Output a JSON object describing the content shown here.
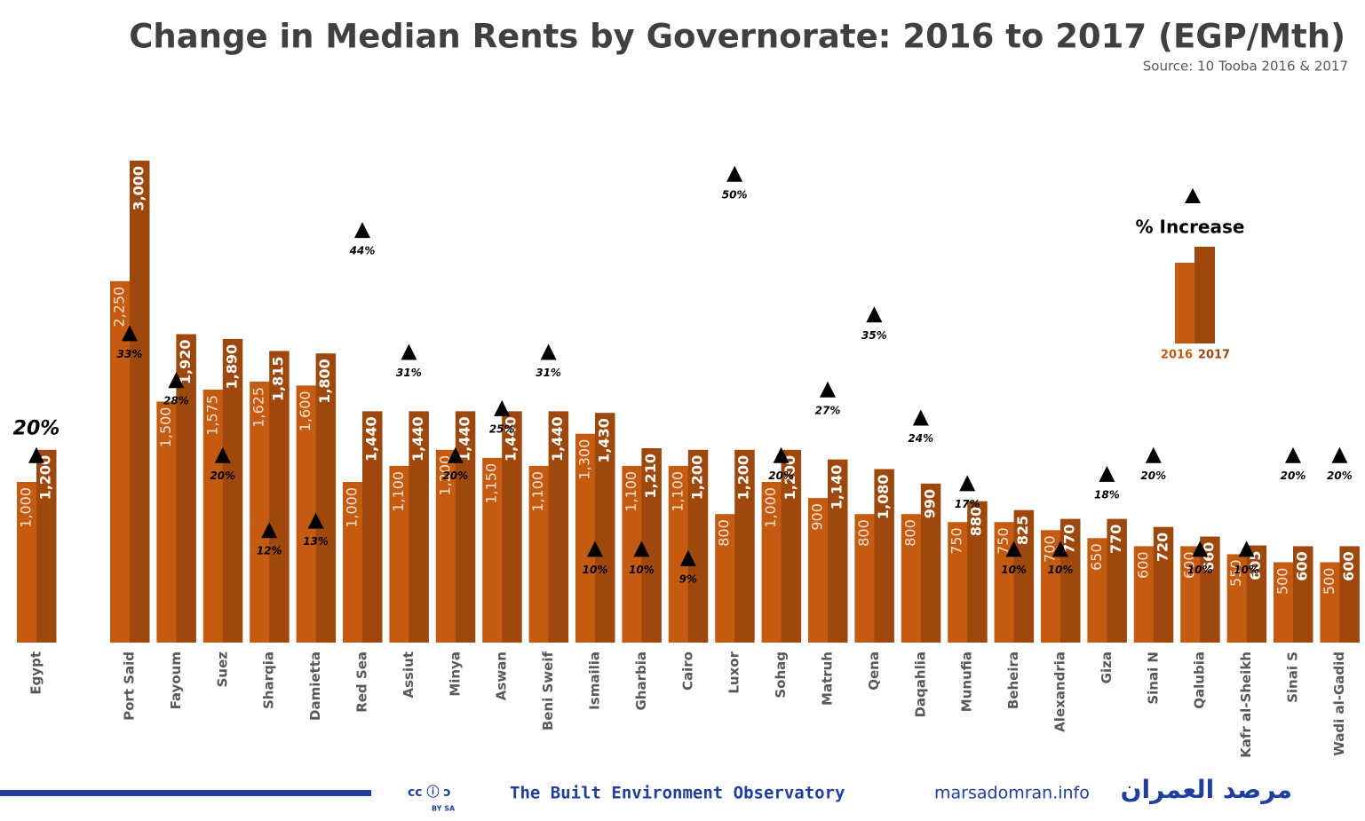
{
  "chart_data": {
    "type": "bar",
    "title": "Change in Median Rents by Governorate: 2016 to 2017 (EGP/Mth)",
    "subtitle": "Source: 10 Tooba 2016 & 2017",
    "categories": [
      "Egypt",
      "Port Said",
      "Fayoum",
      "Suez",
      "Sharqia",
      "Damietta",
      "Red Sea",
      "Assiut",
      "Minya",
      "Aswan",
      "Beni Sweif",
      "Ismailia",
      "Gharbia",
      "Cairo",
      "Luxor",
      "Sohag",
      "Matruh",
      "Qena",
      "Daqahlia",
      "Munufia",
      "Beheira",
      "Alexandria",
      "Giza",
      "Sinai N",
      "Qalubia",
      "Kafr al-Sheikh",
      "Sinai S",
      "Wadi al-Gadid"
    ],
    "series": [
      {
        "name": "2016",
        "color": "#c55a11",
        "values": [
          1000,
          2250,
          1500,
          1575,
          1625,
          1600,
          1000,
          1100,
          1200,
          1150,
          1100,
          1300,
          1100,
          1100,
          800,
          1000,
          900,
          800,
          800,
          750,
          750,
          700,
          650,
          600,
          600,
          550,
          500,
          500
        ],
        "value_labels": [
          "1,000",
          "2,250",
          "1,500",
          "1,575",
          "1,625",
          "1,600",
          "1,000",
          "1,100",
          "1,200",
          "1,150",
          "1,100",
          "1,300",
          "1,100",
          "1,100",
          "800",
          "1,000",
          "900",
          "800",
          "800",
          "750",
          "750",
          "700",
          "650",
          "600",
          "600",
          "550",
          "500",
          "500"
        ]
      },
      {
        "name": "2017",
        "color": "#9e480e",
        "values": [
          1200,
          3000,
          1920,
          1890,
          1815,
          1800,
          1440,
          1440,
          1440,
          1440,
          1440,
          1430,
          1210,
          1200,
          1200,
          1200,
          1140,
          1080,
          990,
          880,
          825,
          770,
          770,
          720,
          660,
          605,
          600,
          600
        ],
        "value_labels": [
          "1,200",
          "3,000",
          "1,920",
          "1,890",
          "1,815",
          "1,800",
          "1,440",
          "1,440",
          "1,440",
          "1,440",
          "1,440",
          "1,430",
          "1,210",
          "1,200",
          "1,200",
          "1,200",
          "1,140",
          "1,080",
          "990",
          "880",
          "825",
          "770",
          "770",
          "720",
          "660",
          "605",
          "600",
          "600"
        ]
      },
      {
        "name": "% Increase",
        "color": "#000000",
        "axis": "y2",
        "values": [
          20,
          33,
          28,
          20,
          12,
          13,
          44,
          31,
          20,
          25,
          31,
          10,
          10,
          9,
          50,
          20,
          27,
          35,
          24,
          17,
          10,
          10,
          18,
          20,
          10,
          10,
          20,
          20
        ],
        "value_labels": [
          "20%",
          "33%",
          "28%",
          "20%",
          "12%",
          "13%",
          "44%",
          "31%",
          "20%",
          "25%",
          "31%",
          "10%",
          "10%",
          "9%",
          "50%",
          "20%",
          "27%",
          "35%",
          "24%",
          "17%",
          "10%",
          "10%",
          "18%",
          "20%",
          "10%",
          "10%",
          "20%",
          "20%"
        ]
      }
    ],
    "ylim": [
      0,
      3000
    ],
    "y2lim": [
      0,
      51.4
    ]
  },
  "footer": {
    "license": "BY  SA",
    "organization": "The Built Environment Observatory",
    "website": "marsadomran.info",
    "arabic_name": "مرصد العمران"
  }
}
